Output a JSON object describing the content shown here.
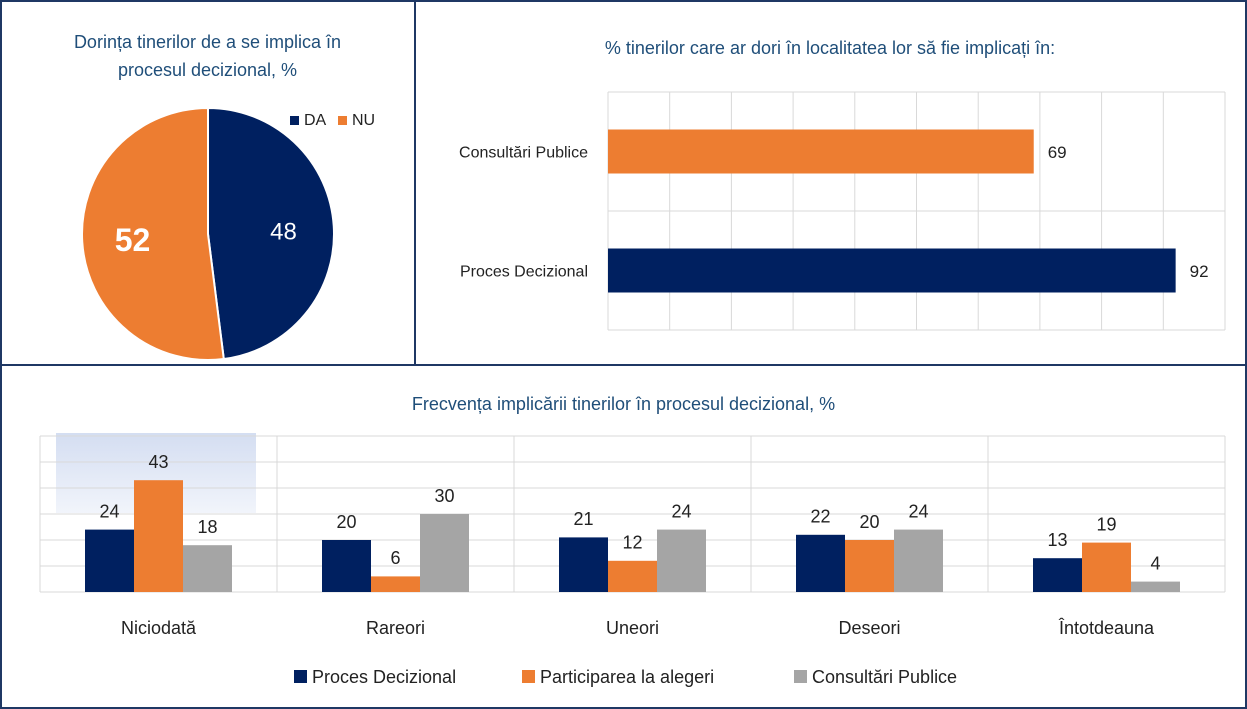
{
  "chart_data": [
    {
      "type": "pie",
      "title": "Dorința tinerilor de a se implica în procesul decizional, %",
      "categories": [
        "DA",
        "NU"
      ],
      "values": [
        48,
        52
      ],
      "colors": [
        "#002060",
        "#ed7d31"
      ],
      "legend": "top-right"
    },
    {
      "type": "hbar",
      "title": "% tinerilor care ar dori în localitatea lor să fie implicați în:",
      "categories": [
        "Consultări Publice",
        "Proces Decizional"
      ],
      "values": [
        69,
        92
      ],
      "colors": [
        "#ed7d31",
        "#002060"
      ],
      "xlim": [
        0,
        100
      ],
      "xticks": [
        0,
        10,
        20,
        30,
        40,
        50,
        60,
        70,
        80,
        90,
        100
      ],
      "grid": true
    },
    {
      "type": "grouped-bar",
      "title": "Frecvența implicării tinerilor în procesul decizional, %",
      "categories": [
        "Niciodată",
        "Rareori",
        "Uneori",
        "Deseori",
        "Întotdeauna"
      ],
      "series": [
        {
          "name": "Proces Decizional",
          "color": "#002060",
          "values": [
            24,
            20,
            21,
            22,
            13
          ]
        },
        {
          "name": "Participarea la alegeri",
          "color": "#ed7d31",
          "values": [
            43,
            6,
            12,
            20,
            19
          ]
        },
        {
          "name": "Consultări Publice",
          "color": "#a5a5a5",
          "values": [
            18,
            30,
            24,
            24,
            4
          ]
        }
      ],
      "ylim": [
        0,
        60
      ],
      "yticks": [
        0,
        10,
        20,
        30,
        40,
        50,
        60
      ],
      "grid": true,
      "legend": "bottom"
    }
  ]
}
